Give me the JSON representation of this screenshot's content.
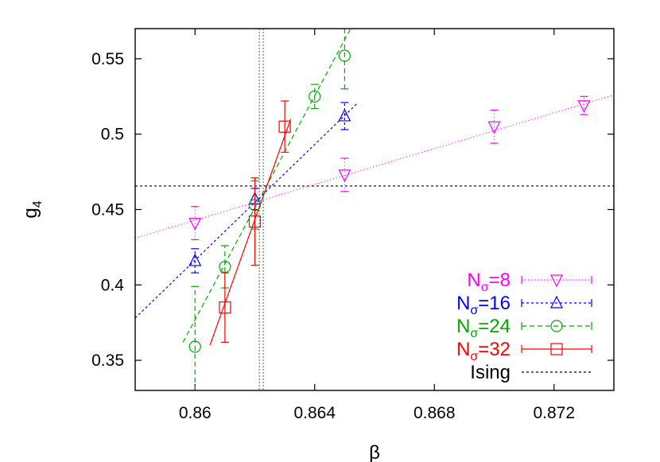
{
  "chart_data": {
    "type": "scatter",
    "xlabel": "β",
    "ylabel_main": "g",
    "ylabel_sub": "4",
    "xlim": [
      0.858,
      0.874
    ],
    "ylim": [
      0.33,
      0.57
    ],
    "xticks": [
      0.86,
      0.864,
      0.868,
      0.872
    ],
    "xtick_labels": [
      "0.86",
      "0.864",
      "0.868",
      "0.872"
    ],
    "yticks": [
      0.35,
      0.4,
      0.45,
      0.5,
      0.55
    ],
    "ytick_labels": [
      "0.35",
      "0.4",
      "0.45",
      "0.5",
      "0.55"
    ],
    "grid": false,
    "legend_position": "bottom-right",
    "critical_beta_lines": [
      0.86215,
      0.86228
    ],
    "series": [
      {
        "label_main": "N",
        "label_sub": "σ",
        "label_tail": "=8",
        "color": "#ff00ff",
        "marker": "triangle-down",
        "dash": "1,3",
        "points": [
          {
            "x": 0.86,
            "y": 0.441,
            "err": 0.011
          },
          {
            "x": 0.865,
            "y": 0.473,
            "err": 0.011
          },
          {
            "x": 0.87,
            "y": 0.505,
            "err": 0.011
          },
          {
            "x": 0.873,
            "y": 0.519,
            "err": 0.006
          }
        ],
        "fit": [
          [
            0.858,
            0.431
          ],
          [
            0.874,
            0.526
          ]
        ]
      },
      {
        "label_main": "N",
        "label_sub": "σ",
        "label_tail": "=16",
        "color": "#0000ff",
        "marker": "triangle-up",
        "dash": "3,3",
        "points": [
          {
            "x": 0.86,
            "y": 0.416,
            "err": 0.008
          },
          {
            "x": 0.862,
            "y": 0.457,
            "err": 0.007
          },
          {
            "x": 0.865,
            "y": 0.512,
            "err": 0.009
          }
        ],
        "fit": [
          [
            0.858,
            0.378
          ],
          [
            0.8654,
            0.52
          ]
        ]
      },
      {
        "label_main": "N",
        "label_sub": "σ",
        "label_tail": "=24",
        "color": "#00aa00",
        "marker": "circle",
        "dash": "6,4",
        "points": [
          {
            "x": 0.86,
            "y": 0.359,
            "err": 0.04
          },
          {
            "x": 0.861,
            "y": 0.412,
            "err": 0.014
          },
          {
            "x": 0.862,
            "y": 0.453,
            "err": 0.016
          },
          {
            "x": 0.864,
            "y": 0.525,
            "err": 0.008
          },
          {
            "x": 0.865,
            "y": 0.552,
            "err": 0.022
          }
        ],
        "fit": [
          [
            0.8596,
            0.362
          ],
          [
            0.8652,
            0.57
          ]
        ]
      },
      {
        "label_main": "N",
        "label_sub": "σ",
        "label_tail": "=32",
        "color": "#ff0000",
        "marker": "square",
        "dash": "",
        "points": [
          {
            "x": 0.861,
            "y": 0.385,
            "err": 0.023
          },
          {
            "x": 0.862,
            "y": 0.442,
            "err": 0.029
          },
          {
            "x": 0.863,
            "y": 0.505,
            "err": 0.017
          }
        ],
        "fit": [
          [
            0.8605,
            0.36
          ],
          [
            0.8632,
            0.51
          ]
        ]
      }
    ],
    "reference_line": {
      "label": "Ising",
      "y": 0.4656,
      "color": "#000000",
      "dash": "3,3"
    }
  }
}
